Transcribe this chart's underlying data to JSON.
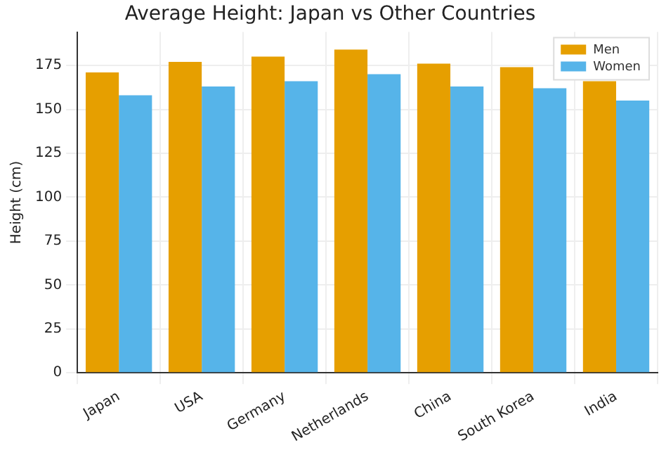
{
  "chart_data": {
    "type": "bar",
    "title": "Average Height: Japan vs Other Countries",
    "ylabel": "Height (cm)",
    "categories": [
      "Japan",
      "USA",
      "Germany",
      "Netherlands",
      "China",
      "South Korea",
      "India"
    ],
    "series": [
      {
        "name": "Men",
        "color": "#e69f00",
        "values": [
          171,
          177,
          180,
          184,
          176,
          174,
          166
        ]
      },
      {
        "name": "Women",
        "color": "#56b4e9",
        "values": [
          158,
          163,
          166,
          170,
          163,
          162,
          155
        ]
      }
    ],
    "ylim": [
      0,
      194
    ],
    "yticks": [
      0,
      25,
      50,
      75,
      100,
      125,
      150,
      175
    ],
    "grid": true,
    "legend": "top right"
  }
}
